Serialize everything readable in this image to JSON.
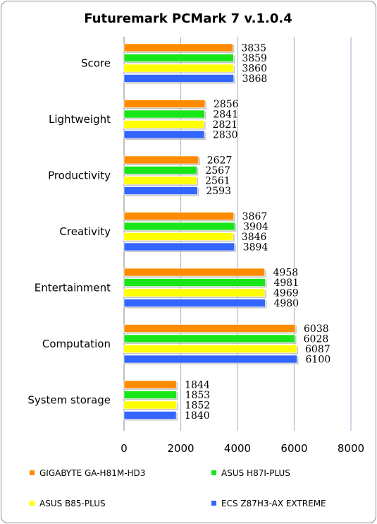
{
  "chart_data": {
    "type": "bar",
    "orientation": "horizontal",
    "title": "Futuremark PCMark 7 v.1.0.4",
    "categories": [
      "Score",
      "Lightweight",
      "Productivity",
      "Creativity",
      "Entertainment",
      "Computation",
      "System storage"
    ],
    "series": [
      {
        "name": "GIGABYTE GA-H81M-HD3",
        "color": "#ff8c00",
        "values": [
          3835,
          2856,
          2627,
          3867,
          4958,
          6038,
          1844
        ]
      },
      {
        "name": "ASUS H87I-PLUS",
        "color": "#19e619",
        "values": [
          3859,
          2841,
          2567,
          3904,
          4981,
          6028,
          1853
        ]
      },
      {
        "name": "ASUS B85-PLUS",
        "color": "#ffff00",
        "values": [
          3860,
          2821,
          2561,
          3846,
          4969,
          6087,
          1852
        ]
      },
      {
        "name": "ECS Z87H3-AX EXTREME",
        "color": "#3366ff",
        "values": [
          3868,
          2830,
          2593,
          3894,
          4980,
          6100,
          1840
        ]
      }
    ],
    "xlim": [
      0,
      8000
    ],
    "xticks": [
      "0",
      "2000",
      "4000",
      "6000",
      "8000"
    ],
    "grid": true,
    "legend_position": "bottom"
  }
}
